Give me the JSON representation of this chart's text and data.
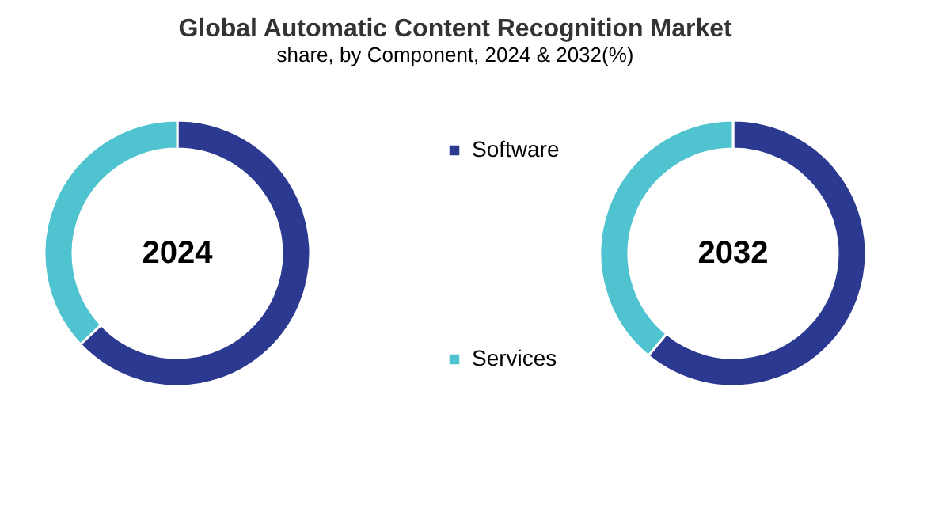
{
  "chart_data": {
    "type": "donut",
    "title": "Global Automatic Content Recognition Market",
    "subtitle": "share, by Component, 2024 & 2032(%)",
    "categories": [
      "Software",
      "Services"
    ],
    "colors": [
      "#2b3990",
      "#4fc3cf"
    ],
    "legend": "right",
    "series": [
      {
        "name": "2024",
        "values": [
          63,
          37
        ]
      },
      {
        "name": "2032",
        "values": [
          61,
          39
        ]
      }
    ]
  }
}
